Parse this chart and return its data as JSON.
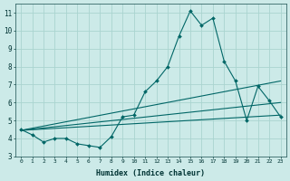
{
  "xlabel": "Humidex (Indice chaleur)",
  "bg_color": "#cceae8",
  "line_color": "#006666",
  "grid_color": "#aad4d0",
  "xlim": [
    -0.5,
    23.5
  ],
  "ylim": [
    3.0,
    11.5
  ],
  "yticks": [
    3,
    4,
    5,
    6,
    7,
    8,
    9,
    10,
    11
  ],
  "xticks": [
    0,
    1,
    2,
    3,
    4,
    5,
    6,
    7,
    8,
    9,
    10,
    11,
    12,
    13,
    14,
    15,
    16,
    17,
    18,
    19,
    20,
    21,
    22,
    23
  ],
  "main_x": [
    0,
    1,
    2,
    3,
    4,
    5,
    6,
    7,
    8,
    9,
    10,
    11,
    12,
    13,
    14,
    15,
    16,
    17,
    18,
    19,
    20,
    21,
    22,
    23
  ],
  "main_y": [
    4.5,
    4.2,
    3.8,
    4.0,
    4.0,
    3.7,
    3.6,
    3.5,
    4.1,
    5.2,
    5.3,
    6.6,
    7.2,
    8.0,
    9.7,
    11.1,
    10.3,
    10.7,
    8.3,
    7.2,
    5.0,
    6.9,
    6.1,
    5.2
  ],
  "trend1_x": [
    0,
    23
  ],
  "trend1_y": [
    4.45,
    7.2
  ],
  "trend2_x": [
    0,
    23
  ],
  "trend2_y": [
    4.45,
    5.3
  ],
  "trend3_x": [
    0,
    23
  ],
  "trend3_y": [
    4.45,
    6.0
  ]
}
